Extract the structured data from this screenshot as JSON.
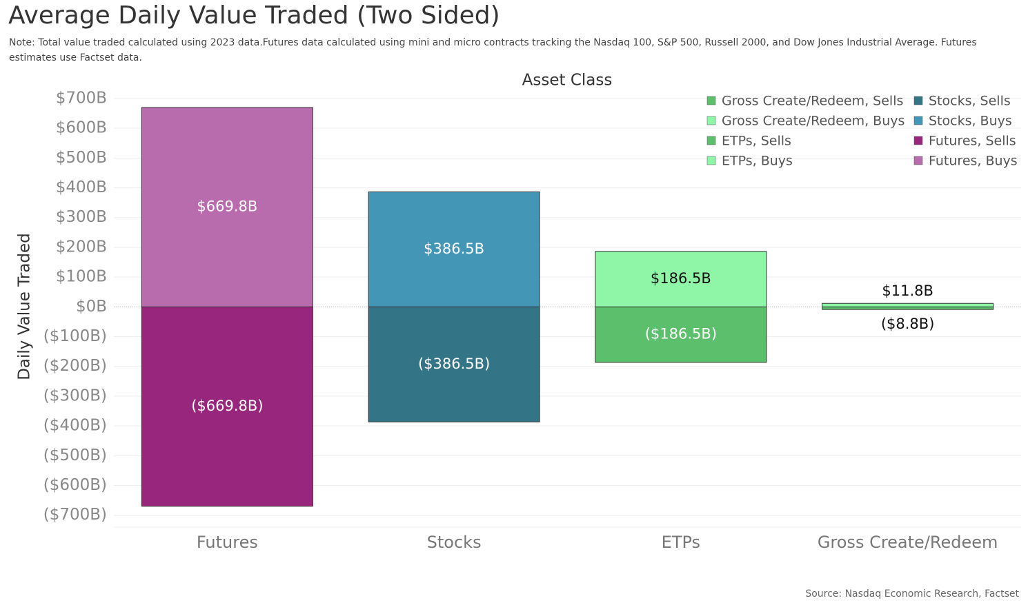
{
  "chart_data": {
    "type": "bar",
    "stacked": true,
    "title": "Average Daily Value Traded (Two Sided)",
    "subtitle": "Note: Total value traded calculated using 2023 data.Futures data calculated using mini and micro contracts tracking the Nasdaq 100, S&P 500, Russell 2000, and Dow Jones Industrial Average. Futures estimates use Factset data.",
    "x_label": "Asset Class",
    "y_label": "Daily Value Traded",
    "source": "Source: Nasdaq Economic Research, Factset",
    "categories": [
      "Futures",
      "Stocks",
      "ETPs",
      "Gross Create/Redeem"
    ],
    "series": [
      {
        "name": "Gross Create/Redeem, Sells",
        "color": "#5cbf6c",
        "values": [
          null,
          null,
          null,
          -8.8
        ],
        "value_labels": [
          null,
          null,
          null,
          "($8.8B)"
        ]
      },
      {
        "name": "Gross Create/Redeem, Buys",
        "color": "#8ff5a7",
        "values": [
          null,
          null,
          null,
          11.8
        ],
        "value_labels": [
          null,
          null,
          null,
          "$11.8B"
        ]
      },
      {
        "name": "ETPs, Sells",
        "color": "#5cbf6c",
        "values": [
          null,
          null,
          -186.5,
          null
        ],
        "value_labels": [
          null,
          null,
          "($186.5B)",
          null
        ]
      },
      {
        "name": "ETPs, Buys",
        "color": "#8ff5a7",
        "values": [
          null,
          null,
          186.5,
          null
        ],
        "value_labels": [
          null,
          null,
          "$186.5B",
          null
        ]
      },
      {
        "name": "Stocks, Sells",
        "color": "#337587",
        "values": [
          null,
          -386.5,
          null,
          null
        ],
        "value_labels": [
          null,
          "($386.5B)",
          null,
          null
        ]
      },
      {
        "name": "Stocks, Buys",
        "color": "#4396b6",
        "values": [
          null,
          386.5,
          null,
          null
        ],
        "value_labels": [
          null,
          "$386.5B",
          null,
          null
        ]
      },
      {
        "name": "Futures, Sells",
        "color": "#98267c",
        "values": [
          -669.8,
          null,
          null,
          null
        ],
        "value_labels": [
          "($669.8B)",
          null,
          null,
          null
        ]
      },
      {
        "name": "Futures, Buys",
        "color": "#b86bad",
        "values": [
          669.8,
          null,
          null,
          null
        ],
        "value_labels": [
          "$669.8B",
          null,
          null,
          null
        ]
      }
    ],
    "ylim": [
      -740,
      730
    ],
    "yticks": [
      {
        "value": 700,
        "label": "$700B"
      },
      {
        "value": 600,
        "label": "$600B"
      },
      {
        "value": 500,
        "label": "$500B"
      },
      {
        "value": 400,
        "label": "$400B"
      },
      {
        "value": 300,
        "label": "$300B"
      },
      {
        "value": 200,
        "label": "$200B"
      },
      {
        "value": 100,
        "label": "$100B"
      },
      {
        "value": 0,
        "label": "$0B"
      },
      {
        "value": -100,
        "label": "($100B)"
      },
      {
        "value": -200,
        "label": "($200B)"
      },
      {
        "value": -300,
        "label": "($300B)"
      },
      {
        "value": -400,
        "label": "($400B)"
      },
      {
        "value": -500,
        "label": "($500B)"
      },
      {
        "value": -600,
        "label": "($600B)"
      },
      {
        "value": -700,
        "label": "($700B)"
      }
    ],
    "grid": true,
    "legend": "top-right"
  }
}
